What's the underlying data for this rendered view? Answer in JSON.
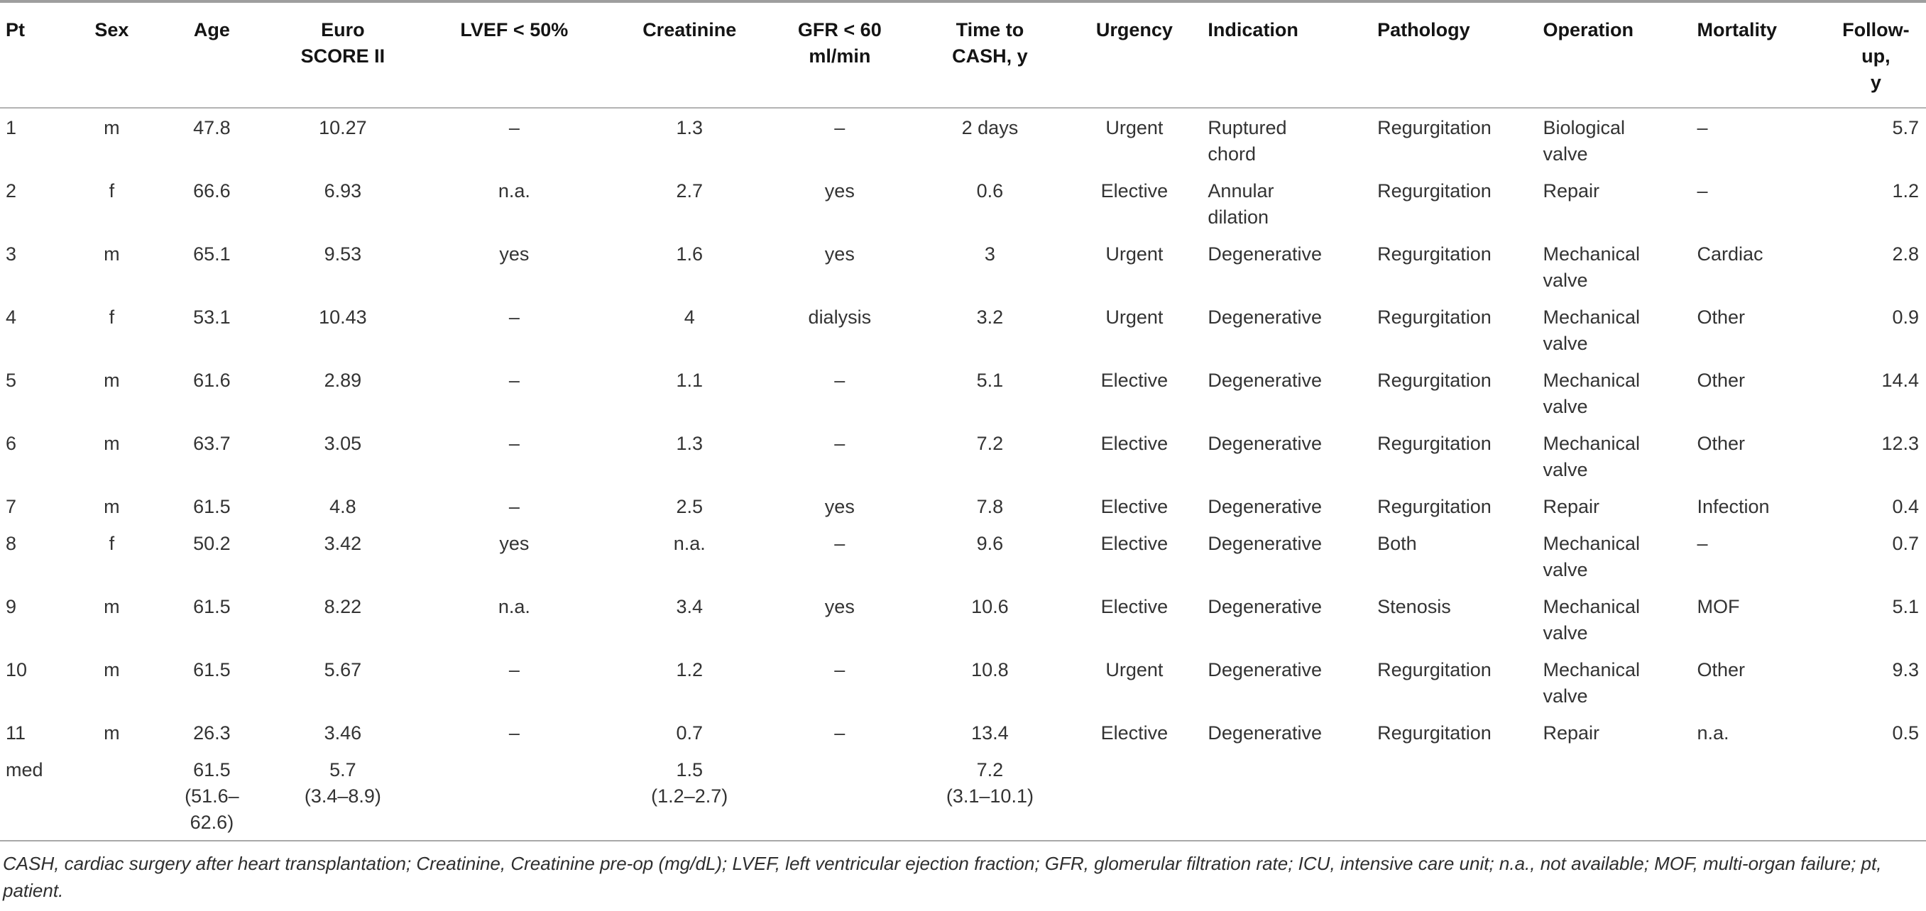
{
  "page": {
    "background_color": "#ffffff",
    "rule_color": "#9e9e9e",
    "header_text_color": "#141414",
    "body_text_color": "#333333"
  },
  "table": {
    "columns": [
      {
        "label": "Pt",
        "align": "left"
      },
      {
        "label": "Sex",
        "align": "center"
      },
      {
        "label": "Age",
        "align": "center"
      },
      {
        "label": "Euro\nSCORE II",
        "align": "center"
      },
      {
        "label": "LVEF < 50%",
        "align": "center"
      },
      {
        "label": "Creatinine",
        "align": "center"
      },
      {
        "label": "GFR < 60\nml/min",
        "align": "center"
      },
      {
        "label": "Time to\nCASH, y",
        "align": "center"
      },
      {
        "label": "Urgency",
        "align": "center"
      },
      {
        "label": "Indication",
        "align": "left"
      },
      {
        "label": "Pathology",
        "align": "left"
      },
      {
        "label": "Operation",
        "align": "left"
      },
      {
        "label": "Mortality",
        "align": "left"
      },
      {
        "label": "Follow-up,\ny",
        "align": "right",
        "header_align": "center"
      }
    ],
    "rows": [
      [
        "1",
        "m",
        "47.8",
        "10.27",
        "–",
        "1.3",
        "–",
        "2 days",
        "Urgent",
        "Ruptured\nchord",
        "Regurgitation",
        "Biological\nvalve",
        "–",
        "5.7"
      ],
      [
        "2",
        "f",
        "66.6",
        "6.93",
        "n.a.",
        "2.7",
        "yes",
        "0.6",
        "Elective",
        "Annular\ndilation",
        "Regurgitation",
        "Repair",
        "–",
        "1.2"
      ],
      [
        "3",
        "m",
        "65.1",
        "9.53",
        "yes",
        "1.6",
        "yes",
        "3",
        "Urgent",
        "Degenerative",
        "Regurgitation",
        "Mechanical\nvalve",
        "Cardiac",
        "2.8"
      ],
      [
        "4",
        "f",
        "53.1",
        "10.43",
        "–",
        "4",
        "dialysis",
        "3.2",
        "Urgent",
        "Degenerative",
        "Regurgitation",
        "Mechanical\nvalve",
        "Other",
        "0.9"
      ],
      [
        "5",
        "m",
        "61.6",
        "2.89",
        "–",
        "1.1",
        "–",
        "5.1",
        "Elective",
        "Degenerative",
        "Regurgitation",
        "Mechanical\nvalve",
        "Other",
        "14.4"
      ],
      [
        "6",
        "m",
        "63.7",
        "3.05",
        "–",
        "1.3",
        "–",
        "7.2",
        "Elective",
        "Degenerative",
        "Regurgitation",
        "Mechanical\nvalve",
        "Other",
        "12.3"
      ],
      [
        "7",
        "m",
        "61.5",
        "4.8",
        "–",
        "2.5",
        "yes",
        "7.8",
        "Elective",
        "Degenerative",
        "Regurgitation",
        "Repair",
        "Infection",
        "0.4"
      ],
      [
        "8",
        "f",
        "50.2",
        "3.42",
        "yes",
        "n.a.",
        "–",
        "9.6",
        "Elective",
        "Degenerative",
        "Both",
        "Mechanical\nvalve",
        "–",
        "0.7"
      ],
      [
        "9",
        "m",
        "61.5",
        "8.22",
        "n.a.",
        "3.4",
        "yes",
        "10.6",
        "Elective",
        "Degenerative",
        "Stenosis",
        "Mechanical\nvalve",
        "MOF",
        "5.1"
      ],
      [
        "10",
        "m",
        "61.5",
        "5.67",
        "–",
        "1.2",
        "–",
        "10.8",
        "Urgent",
        "Degenerative",
        "Regurgitation",
        "Mechanical\nvalve",
        "Other",
        "9.3"
      ],
      [
        "11",
        "m",
        "26.3",
        "3.46",
        "–",
        "0.7",
        "–",
        "13.4",
        "Elective",
        "Degenerative",
        "Regurgitation",
        "Repair",
        "n.a.",
        "0.5"
      ],
      [
        "med",
        "",
        "61.5\n(51.6–\n62.6)",
        "5.7\n(3.4–8.9)",
        "",
        "1.5\n(1.2–2.7)",
        "",
        "7.2\n(3.1–10.1)",
        "",
        "",
        "",
        "",
        "",
        ""
      ]
    ],
    "footnote": "CASH, cardiac surgery after heart transplantation; Creatinine, Creatinine pre-op (mg/dL); LVEF, left ventricular ejection fraction; GFR, glomerular filtration rate; ICU, intensive care unit; n.a., not available; MOF, multi-organ failure; pt, patient."
  }
}
